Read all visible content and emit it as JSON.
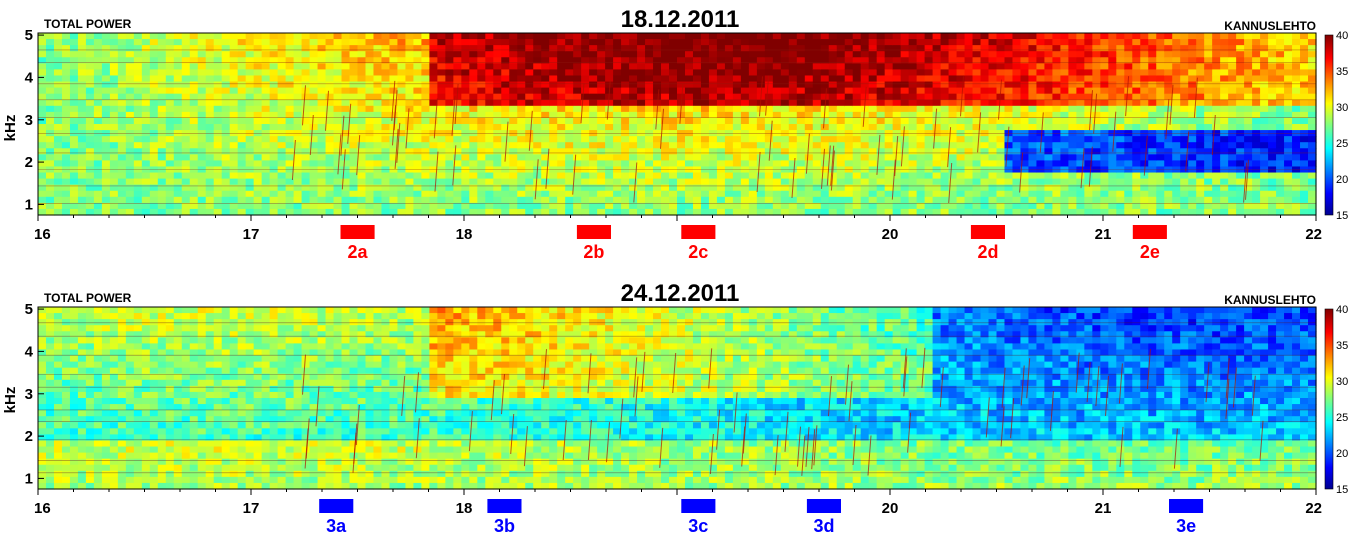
{
  "chart_data": [
    {
      "type": "heatmap",
      "title": "18.12.2011",
      "left_label": "TOTAL POWER",
      "right_label": "KANNUSLEHTO",
      "ylabel": "kHz",
      "xlim": [
        16,
        22
      ],
      "ylim": [
        0.75,
        5.05
      ],
      "x_ticks": [
        "16",
        "17",
        "18",
        "20",
        "21",
        "22"
      ],
      "y_ticks": [
        "1",
        "2",
        "3",
        "4",
        "5"
      ],
      "colorbar": {
        "ticks": [
          "15",
          "20",
          "25",
          "30",
          "35",
          "40"
        ],
        "range": [
          15,
          40
        ]
      },
      "event_color": "#ff0000",
      "events": [
        {
          "label": "2a",
          "start": 17.42,
          "end": 17.58
        },
        {
          "label": "2b",
          "start": 18.53,
          "end": 18.69
        },
        {
          "label": "2c",
          "start": 19.02,
          "end": 19.18
        },
        {
          "label": "2d",
          "start": 20.38,
          "end": 20.54
        },
        {
          "label": "2e",
          "start": 21.14,
          "end": 21.3
        }
      ]
    },
    {
      "type": "heatmap",
      "title": "24.12.2011",
      "left_label": "TOTAL POWER",
      "right_label": "KANNUSLEHTO",
      "ylabel": "kHz",
      "xlim": [
        16,
        22
      ],
      "ylim": [
        0.75,
        5.05
      ],
      "x_ticks": [
        "16",
        "17",
        "18",
        "20",
        "21",
        "22"
      ],
      "y_ticks": [
        "1",
        "2",
        "3",
        "4",
        "5"
      ],
      "colorbar": {
        "ticks": [
          "15",
          "20",
          "25",
          "30",
          "35",
          "40"
        ],
        "range": [
          15,
          40
        ]
      },
      "event_color": "#0000ff",
      "events": [
        {
          "label": "3a",
          "start": 17.32,
          "end": 17.48
        },
        {
          "label": "3b",
          "start": 18.11,
          "end": 18.27
        },
        {
          "label": "3c",
          "start": 19.02,
          "end": 19.18
        },
        {
          "label": "3d",
          "start": 19.61,
          "end": 19.77
        },
        {
          "label": "3e",
          "start": 21.31,
          "end": 21.47
        }
      ]
    }
  ]
}
